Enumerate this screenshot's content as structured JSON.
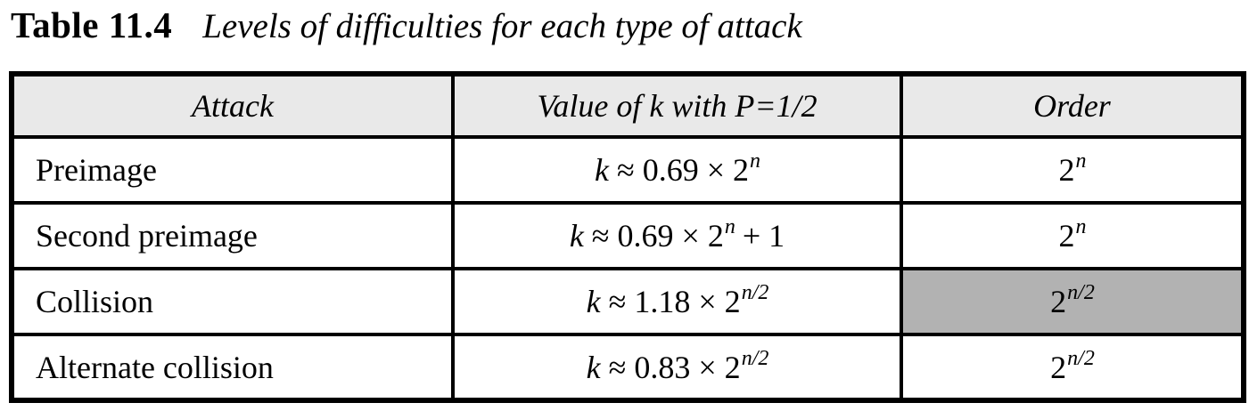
{
  "title": {
    "label": "Table 11.4",
    "caption": "Levels of difficulties for each type of attack"
  },
  "table": {
    "headers": {
      "attack": "Attack",
      "value": "Value of k with P=1/2",
      "order": "Order"
    },
    "rows": [
      {
        "attack": "Preimage",
        "k_var": "k",
        "value_mid": " ≈ 0.69 × 2",
        "value_exp": "n",
        "value_suffix": "",
        "order_base": "2",
        "order_exp": "n",
        "order_highlight": false
      },
      {
        "attack": "Second preimage",
        "k_var": "k",
        "value_mid": " ≈ 0.69 × 2",
        "value_exp": "n",
        "value_suffix": " + 1",
        "order_base": "2",
        "order_exp": "n",
        "order_highlight": false
      },
      {
        "attack": "Collision",
        "k_var": "k",
        "value_mid": " ≈ 1.18 × 2",
        "value_exp": "n/2",
        "value_suffix": "",
        "order_base": "2",
        "order_exp": "n/2",
        "order_highlight": true
      },
      {
        "attack": "Alternate collision",
        "k_var": "k",
        "value_mid": " ≈ 0.83 × 2",
        "value_exp": "n/2",
        "value_suffix": "",
        "order_base": "2",
        "order_exp": "n/2",
        "order_highlight": false
      }
    ]
  },
  "colors": {
    "header_bg": "#e9e9e9",
    "highlight_bg": "#b2b2b2",
    "border": "#000000",
    "text": "#000000"
  }
}
